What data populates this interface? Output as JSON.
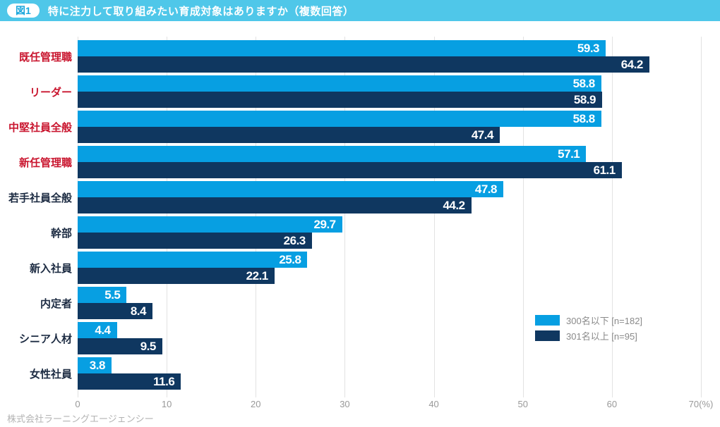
{
  "header": {
    "badge": "図1",
    "title": "特に注力して取り組みたい育成対象はありますか（複数回答）",
    "bg_color": "#4fc7e9",
    "badge_text_color": "#1ba7dc"
  },
  "footer": {
    "company": "株式会社ラーニングエージェンシー"
  },
  "chart_data": {
    "type": "bar",
    "orientation": "horizontal",
    "title": "特に注力して取り組みたい育成対象はありますか（複数回答）",
    "categories": [
      {
        "label": "既任管理職",
        "emphasis": true
      },
      {
        "label": "リーダー",
        "emphasis": true
      },
      {
        "label": "中堅社員全般",
        "emphasis": true
      },
      {
        "label": "新任管理職",
        "emphasis": true
      },
      {
        "label": "若手社員全般",
        "emphasis": false
      },
      {
        "label": "幹部",
        "emphasis": false
      },
      {
        "label": "新入社員",
        "emphasis": false
      },
      {
        "label": "内定者",
        "emphasis": false
      },
      {
        "label": "シニア人材",
        "emphasis": false
      },
      {
        "label": "女性社員",
        "emphasis": false
      }
    ],
    "series": [
      {
        "name": "300名以下 [n=182]",
        "color": "#079fe2",
        "values": [
          59.3,
          58.8,
          58.8,
          57.1,
          47.8,
          29.7,
          25.8,
          5.5,
          4.4,
          3.8
        ]
      },
      {
        "name": "301名以上 [n=95]",
        "color": "#0f3760",
        "values": [
          64.2,
          58.9,
          47.4,
          61.1,
          44.2,
          26.3,
          22.1,
          8.4,
          9.5,
          11.6
        ]
      }
    ],
    "xlim": [
      0,
      70
    ],
    "xticks": [
      0,
      10,
      20,
      30,
      40,
      50,
      60,
      70
    ],
    "x_unit_suffix": "(%)",
    "grid": true,
    "legend_position": "bottom-right",
    "colors": {
      "emphasis_label": "#c9162f",
      "label": "#1c2b42",
      "grid": "#e2e2e2",
      "tick": "#999999",
      "value_text": "#ffffff"
    }
  }
}
